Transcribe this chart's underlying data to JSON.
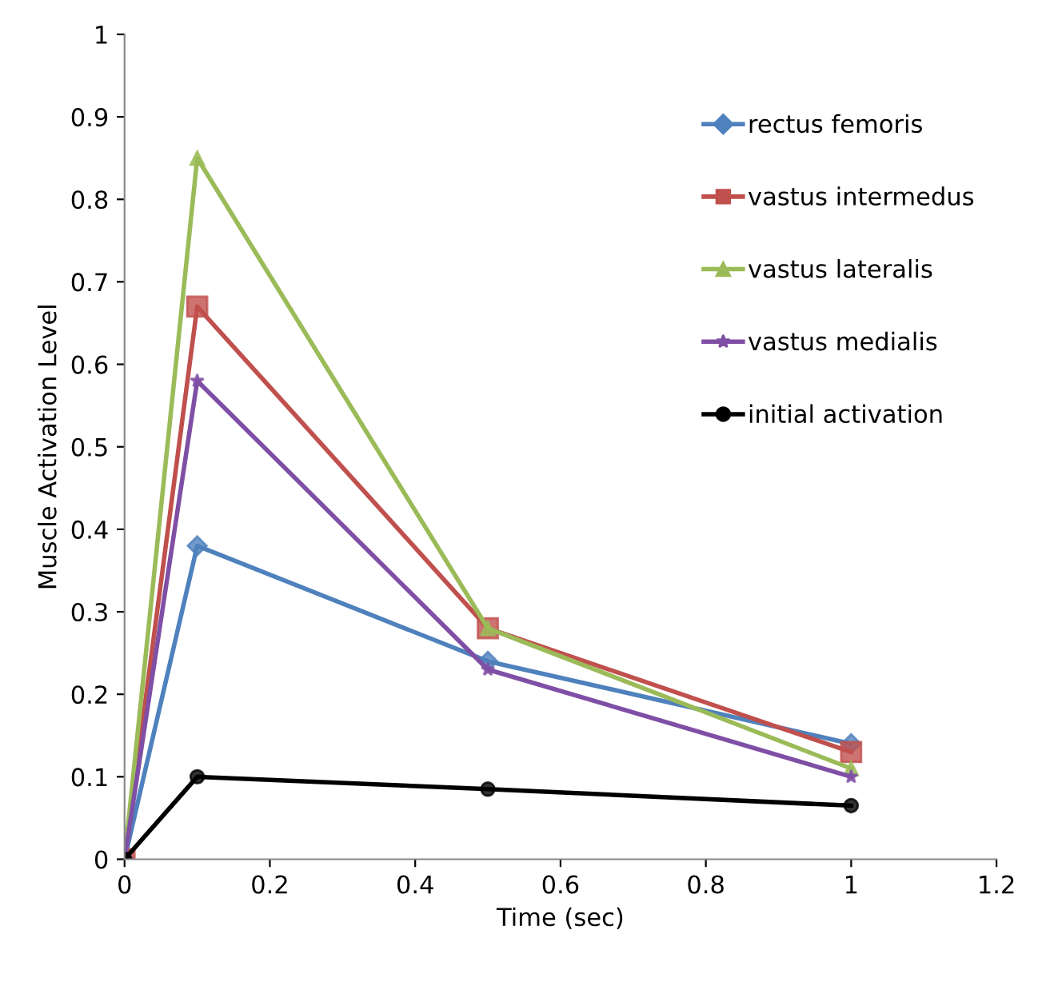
{
  "chart_data": {
    "type": "line",
    "xlabel": "Time (sec)",
    "ylabel": "Muscle Activation Level",
    "x": [
      0,
      0.1,
      0.5,
      1
    ],
    "series": [
      {
        "name": "rectus femoris",
        "color": "#4f81bd",
        "marker": "diamond",
        "values": [
          0,
          0.38,
          0.24,
          0.14
        ]
      },
      {
        "name": "vastus intermedus",
        "color": "#c0504d",
        "marker": "square",
        "values": [
          0,
          0.67,
          0.28,
          0.13
        ]
      },
      {
        "name": "vastus lateralis",
        "color": "#9bbb59",
        "marker": "triangle",
        "values": [
          0,
          0.85,
          0.28,
          0.11
        ]
      },
      {
        "name": "vastus medialis",
        "color": "#7f4fa5",
        "marker": "star",
        "values": [
          0,
          0.58,
          0.23,
          0.1
        ]
      },
      {
        "name": "initial activation",
        "color": "#000000",
        "marker": "circle",
        "values": [
          0,
          0.1,
          0.085,
          0.065
        ]
      }
    ],
    "xlim": [
      0,
      1.2
    ],
    "xticks": [
      0,
      0.2,
      0.4,
      0.6,
      0.8,
      1,
      1.2
    ],
    "ylim": [
      0,
      1
    ],
    "yticks": [
      0,
      0.1,
      0.2,
      0.3,
      0.4,
      0.5,
      0.6,
      0.7,
      0.8,
      0.9,
      1
    ],
    "grid": false,
    "legend": "top right",
    "line_style": "solid"
  }
}
